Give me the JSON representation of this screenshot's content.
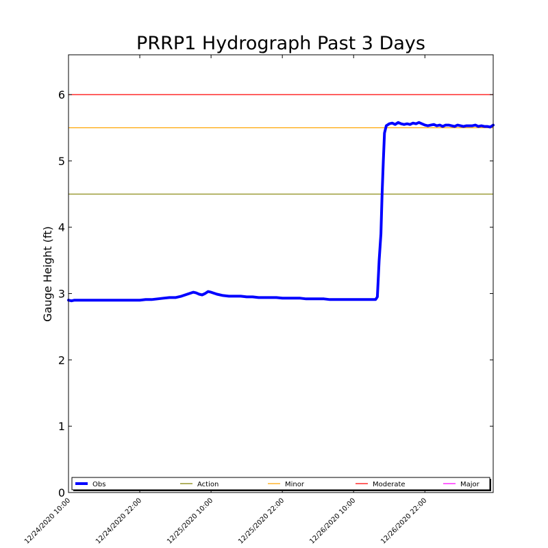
{
  "chart_data": {
    "type": "line",
    "title": "PRRP1 Hydrograph Past 3 Days",
    "xlabel": "",
    "ylabel": "Gauge Height (ft)",
    "ylim": [
      0,
      6.6
    ],
    "yticks": [
      "0",
      "1",
      "2",
      "3",
      "4",
      "5",
      "6"
    ],
    "xlim_hours": [
      0,
      71.5
    ],
    "xticks": [
      {
        "hour": 0,
        "label": "12/24/2020 10:00"
      },
      {
        "hour": 12,
        "label": "12/24/2020 22:00"
      },
      {
        "hour": 24,
        "label": "12/25/2020 10:00"
      },
      {
        "hour": 36,
        "label": "12/25/2020 22:00"
      },
      {
        "hour": 48,
        "label": "12/26/2020 10:00"
      },
      {
        "hour": 60,
        "label": "12/26/2020 22:00"
      }
    ],
    "thresholds": [
      {
        "name": "Action",
        "value": 4.5,
        "color": "#808000"
      },
      {
        "name": "Minor",
        "value": 5.5,
        "color": "#ffa500"
      },
      {
        "name": "Moderate",
        "value": 6.0,
        "color": "#ff0000"
      },
      {
        "name": "Major",
        "value": null,
        "color": "#ff00ff"
      }
    ],
    "series": [
      {
        "name": "Obs",
        "color": "#0000ff",
        "x_hours": [
          0,
          0.5,
          1,
          3,
          6,
          9,
          12,
          13,
          14,
          15,
          16,
          17,
          18,
          19,
          20,
          21,
          21.5,
          22,
          22.5,
          23,
          23.5,
          24,
          25,
          26,
          27,
          28,
          29,
          30,
          31,
          32,
          33,
          34,
          35,
          36,
          37,
          38,
          39,
          40,
          41,
          42,
          43,
          44,
          45,
          46,
          47,
          48,
          49,
          50,
          51,
          51.7,
          52.0,
          52.3,
          52.6,
          52.8,
          53.0,
          53.2,
          53.5,
          54,
          54.5,
          55,
          55.5,
          56,
          56.5,
          57,
          57.5,
          58,
          58.5,
          59,
          59.5,
          60,
          60.5,
          61,
          61.5,
          62,
          62.5,
          63,
          63.5,
          64,
          64.5,
          65,
          65.5,
          66,
          66.5,
          67,
          67.5,
          68,
          68.5,
          69,
          69.5,
          70,
          70.5,
          71,
          71.5
        ],
        "values": [
          2.9,
          2.89,
          2.9,
          2.9,
          2.9,
          2.9,
          2.9,
          2.91,
          2.91,
          2.92,
          2.93,
          2.94,
          2.94,
          2.96,
          2.99,
          3.02,
          3.01,
          2.99,
          2.98,
          3.0,
          3.03,
          3.02,
          2.99,
          2.97,
          2.96,
          2.96,
          2.96,
          2.95,
          2.95,
          2.94,
          2.94,
          2.94,
          2.94,
          2.93,
          2.93,
          2.93,
          2.93,
          2.92,
          2.92,
          2.92,
          2.92,
          2.91,
          2.91,
          2.91,
          2.91,
          2.91,
          2.91,
          2.91,
          2.91,
          2.91,
          2.95,
          3.5,
          3.9,
          4.5,
          5.0,
          5.42,
          5.53,
          5.56,
          5.57,
          5.55,
          5.58,
          5.56,
          5.55,
          5.56,
          5.55,
          5.57,
          5.56,
          5.58,
          5.56,
          5.54,
          5.53,
          5.54,
          5.55,
          5.53,
          5.54,
          5.52,
          5.54,
          5.54,
          5.53,
          5.52,
          5.54,
          5.53,
          5.52,
          5.53,
          5.53,
          5.53,
          5.54,
          5.52,
          5.53,
          5.52,
          5.52,
          5.51,
          5.54
        ]
      }
    ],
    "legend": {
      "placement": "bottom",
      "entries": [
        "Obs",
        "Action",
        "Minor",
        "Moderate",
        "Major"
      ]
    }
  }
}
